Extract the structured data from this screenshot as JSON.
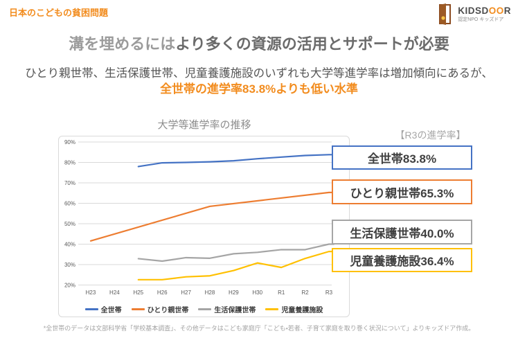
{
  "page": {
    "kicker": "日本のこどもの貧困問題",
    "heading_light": "溝を埋めるには",
    "heading_strong": "より多くの資源の活用とサポートが必要",
    "subtitle_line1": "ひとり親世帯、生活保護世帯、児童養護施設のいずれも大学等進学率は増加傾向にあるが、",
    "subtitle_line2": "全世帯の進学率83.8%よりも低い水準",
    "footer": "*全世帯のデータは文部科学省「学校基本調査」、その他データはこども家庭庁「こども・若者、子育て家庭を取り巻く状況について」よりキッズドア作成。"
  },
  "logo": {
    "name_head": "KIDSD",
    "name_o1": "O",
    "name_o2": "O",
    "name_tail": "R",
    "subtext": "認定NPO キッズドア",
    "door_color": "#9C5A24",
    "accent_color": "#F28C1E"
  },
  "annotation": {
    "title": "【R3の進学率】",
    "boxes": [
      {
        "label": "全世帯83.8%",
        "color": "#4472C4"
      },
      {
        "label": "ひとり親世帯65.3%",
        "color": "#ED7D31"
      },
      {
        "label": "生活保護世帯40.0%",
        "color": "#A5A5A5"
      },
      {
        "label": "児童養護施設36.4%",
        "color": "#FFC000"
      }
    ]
  },
  "chart_data": {
    "type": "line",
    "title": "大学等進学率の推移",
    "categories": [
      "H23",
      "H24",
      "H25",
      "H26",
      "H27",
      "H28",
      "H29",
      "H30",
      "R1",
      "R2",
      "R3"
    ],
    "series": [
      {
        "name": "全世帯",
        "color": "#4472C4",
        "values": [
          null,
          null,
          78.0,
          79.8,
          80.0,
          80.3,
          80.8,
          81.8,
          82.6,
          83.4,
          83.8
        ]
      },
      {
        "name": "ひとり親世帯",
        "color": "#ED7D31",
        "values": [
          41.6,
          null,
          null,
          null,
          null,
          58.5,
          null,
          null,
          null,
          null,
          65.3
        ]
      },
      {
        "name": "生活保護世帯",
        "color": "#A5A5A5",
        "values": [
          null,
          null,
          32.9,
          31.7,
          33.4,
          33.1,
          35.3,
          36.0,
          37.3,
          37.3,
          40.0
        ]
      },
      {
        "name": "児童養護施設",
        "color": "#FFC000",
        "values": [
          null,
          null,
          22.6,
          22.6,
          24.0,
          24.5,
          27.1,
          30.8,
          28.6,
          33.0,
          36.4
        ]
      }
    ],
    "ylim": [
      20,
      90
    ],
    "ytick_step": 10,
    "ytick_suffix": "%",
    "grid": true,
    "legend_position": "bottom",
    "grid_color": "#d9d9d9",
    "tick_color": "#595959"
  }
}
